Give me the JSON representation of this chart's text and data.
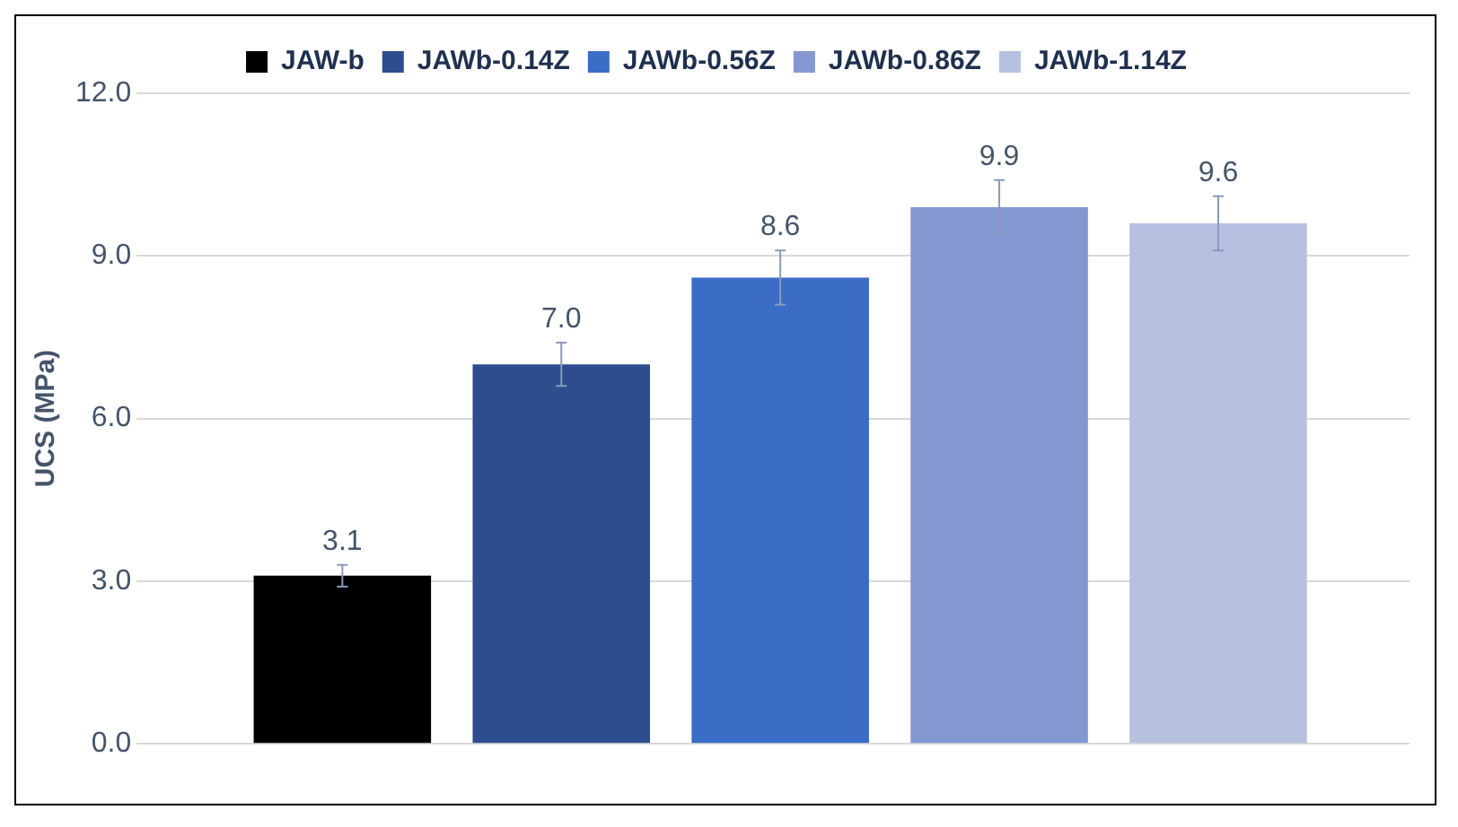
{
  "chart_data": {
    "type": "bar",
    "ylabel": "UCS (MPa)",
    "categories": [
      null
    ],
    "series": [
      {
        "name": "JAW-b",
        "color": "#000000",
        "values": [
          3.1
        ],
        "errors": [
          0.2
        ],
        "value_labels": [
          "3.1"
        ]
      },
      {
        "name": "JAWb-0.14Z",
        "color": "#2e4d8f",
        "values": [
          7.0
        ],
        "errors": [
          0.4
        ],
        "value_labels": [
          "7.0"
        ]
      },
      {
        "name": "JAWb-0.56Z",
        "color": "#3b6cc6",
        "values": [
          8.6
        ],
        "errors": [
          0.5
        ],
        "value_labels": [
          "8.6"
        ]
      },
      {
        "name": "JAWb-0.86Z",
        "color": "#8397d1",
        "values": [
          9.9
        ],
        "errors": [
          0.5
        ],
        "value_labels": [
          "9.9"
        ]
      },
      {
        "name": "JAWb-1.14Z",
        "color": "#b6c0df",
        "values": [
          9.6
        ],
        "errors": [
          0.5
        ],
        "value_labels": [
          "9.6"
        ]
      }
    ],
    "ylim": [
      0,
      12
    ],
    "yticks": [
      {
        "value": 0,
        "label": "0.0"
      },
      {
        "value": 3,
        "label": "3.0"
      },
      {
        "value": 6,
        "label": "6.0"
      },
      {
        "value": 9,
        "label": "9.0"
      },
      {
        "value": 12,
        "label": "12.0"
      }
    ],
    "grid": "y",
    "legend": "top"
  }
}
